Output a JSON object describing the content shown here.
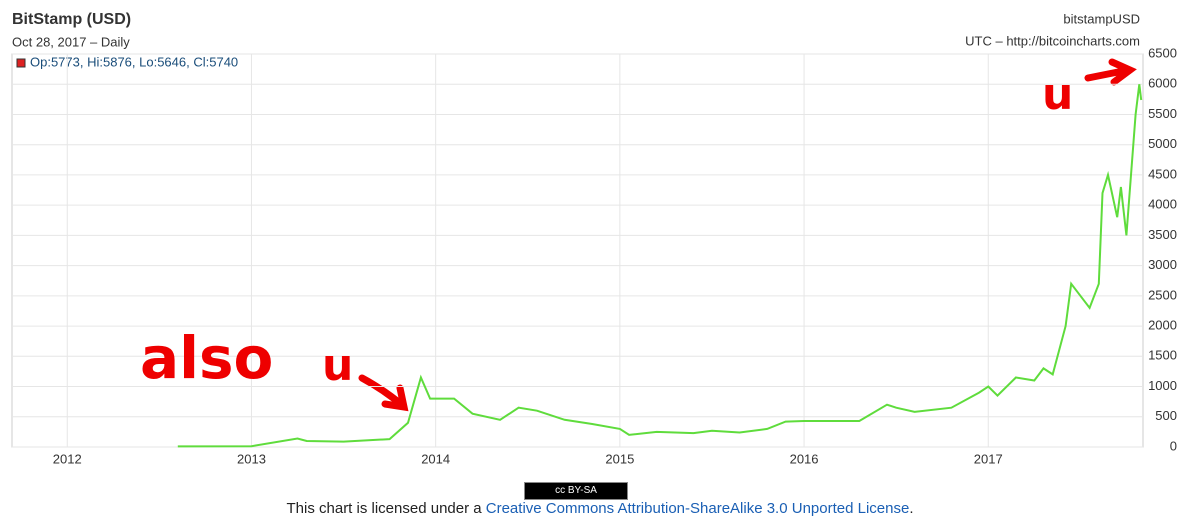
{
  "chart_data": {
    "type": "line",
    "title": "BitStamp (USD)",
    "subtitle": "Oct 28, 2017 – Daily",
    "symbol": "bitstampUSD",
    "source": "UTC – http://bitcoincharts.com",
    "legend_text": "Op:5773, Hi:5876, Lo:5646, Cl:5740",
    "annotations": [
      "also",
      "u",
      "u"
    ],
    "xlim": [
      2011.7,
      2017.84
    ],
    "xticks": [
      2012,
      2013,
      2014,
      2015,
      2016,
      2017
    ],
    "ylim": [
      0,
      6500
    ],
    "yticks": [
      0,
      500,
      1000,
      1500,
      2000,
      2500,
      3000,
      3500,
      4000,
      4500,
      5000,
      5500,
      6000,
      6500
    ],
    "grid": true,
    "series": [
      {
        "name": "Close",
        "color": "#5fdc3c",
        "x": [
          2012.6,
          2013.0,
          2013.25,
          2013.3,
          2013.5,
          2013.75,
          2013.85,
          2013.92,
          2013.97,
          2014.1,
          2014.2,
          2014.35,
          2014.45,
          2014.55,
          2014.7,
          2014.85,
          2015.0,
          2015.05,
          2015.2,
          2015.4,
          2015.5,
          2015.65,
          2015.8,
          2015.9,
          2016.0,
          2016.3,
          2016.45,
          2016.5,
          2016.6,
          2016.8,
          2016.95,
          2017.0,
          2017.05,
          2017.15,
          2017.25,
          2017.3,
          2017.35,
          2017.42,
          2017.45,
          2017.5,
          2017.55,
          2017.6,
          2017.62,
          2017.65,
          2017.7,
          2017.72,
          2017.75,
          2017.8,
          2017.82,
          2017.83
        ],
        "values": [
          10,
          13,
          140,
          100,
          90,
          130,
          400,
          1150,
          800,
          800,
          550,
          450,
          650,
          600,
          450,
          380,
          300,
          200,
          250,
          230,
          270,
          240,
          300,
          420,
          430,
          430,
          700,
          650,
          580,
          650,
          900,
          1000,
          850,
          1150,
          1100,
          1300,
          1200,
          2000,
          2700,
          2500,
          2300,
          2700,
          4200,
          4500,
          3800,
          4300,
          3500,
          5500,
          6000,
          5740
        ]
      }
    ]
  },
  "footer": {
    "badge": "cc BY-SA",
    "prefix": "This chart is licensed under a ",
    "link": "Creative Commons Attribution-ShareAlike 3.0 Unported License",
    "suffix": "."
  }
}
